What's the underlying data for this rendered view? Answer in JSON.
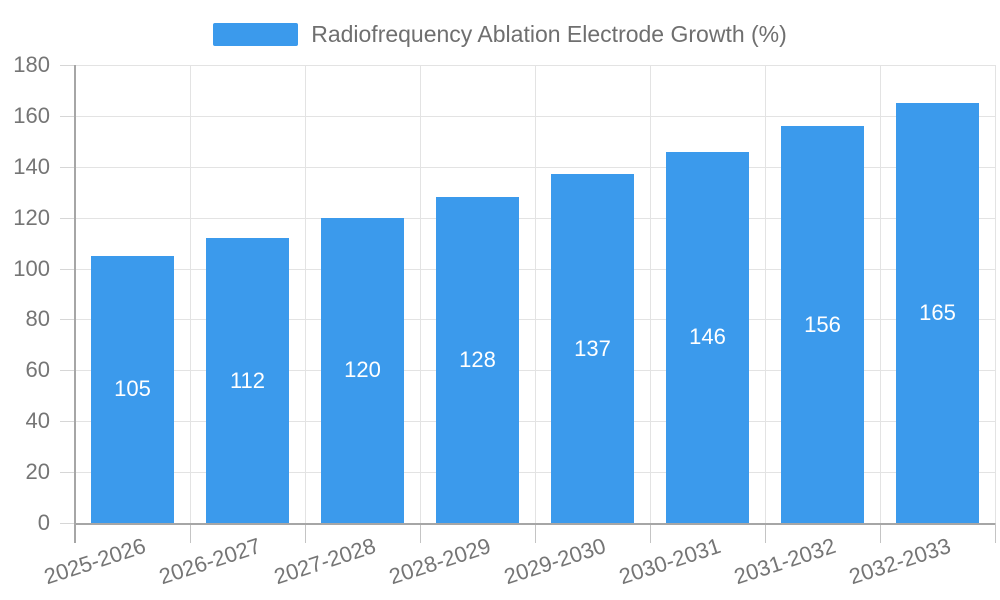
{
  "legend": {
    "label": "Radiofrequency Ablation Electrode Growth (%)"
  },
  "chart_data": {
    "type": "bar",
    "title": "Radiofrequency Ablation Electrode Growth (%)",
    "categories": [
      "2025-2026",
      "2026-2027",
      "2027-2028",
      "2028-2029",
      "2029-2030",
      "2030-2031",
      "2031-2032",
      "2032-2033"
    ],
    "values": [
      105,
      112,
      120,
      128,
      137,
      146,
      156,
      165
    ],
    "xlabel": "",
    "ylabel": "",
    "ylim": [
      0,
      180
    ],
    "ytick_step": 20,
    "ytick_labels": [
      "0",
      "20",
      "40",
      "60",
      "80",
      "100",
      "120",
      "140",
      "160",
      "180"
    ],
    "grid": "both",
    "legend_position": "top-center",
    "value_labels": "inside-center",
    "colors": {
      "bar": "#3b9aec",
      "value_label": "#ffffff",
      "axis_text": "#757575",
      "legend_text": "#6f6f6f",
      "gridline": "#e3e3e3",
      "axis_line": "#a6a6a6"
    }
  }
}
